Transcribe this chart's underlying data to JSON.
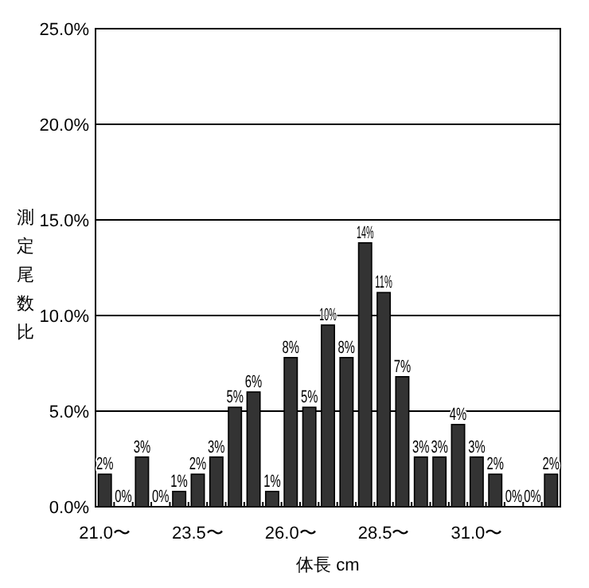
{
  "chart_data": {
    "type": "bar",
    "xlabel": "体長 cm",
    "ylabel": "測定尾数比",
    "categories": [
      "21.0〜",
      null,
      null,
      null,
      null,
      "23.5〜",
      null,
      null,
      null,
      null,
      "26.0〜",
      null,
      null,
      null,
      null,
      "28.5〜",
      null,
      null,
      null,
      null,
      "31.0〜",
      null,
      null,
      null,
      null
    ],
    "values": [
      1.7,
      0,
      2.6,
      0,
      0.8,
      1.7,
      2.6,
      5.2,
      6.0,
      0.8,
      7.8,
      5.2,
      9.5,
      7.8,
      13.8,
      11.2,
      6.8,
      2.6,
      2.6,
      4.3,
      2.6,
      1.7,
      0,
      0,
      1.7
    ],
    "value_labels": [
      "2%",
      "0%",
      "3%",
      "0%",
      "1%",
      "2%",
      "3%",
      "5%",
      "6%",
      "1%",
      "8%",
      "5%",
      "10%",
      "8%",
      "14%",
      "11%",
      "7%",
      "3%",
      "3%",
      "4%",
      "3%",
      "2%",
      "0%",
      "0%",
      "2%"
    ],
    "color": "#333333",
    "ylim": [
      0,
      25
    ],
    "yticks": [
      {
        "value": 0,
        "label": "0.0%"
      },
      {
        "value": 5,
        "label": "5.0%"
      },
      {
        "value": 10,
        "label": "10.0%"
      },
      {
        "value": 15,
        "label": "15.0%"
      },
      {
        "value": 20,
        "label": "20.0%"
      },
      {
        "value": 25,
        "label": "25.0%"
      }
    ],
    "grid": "y"
  }
}
